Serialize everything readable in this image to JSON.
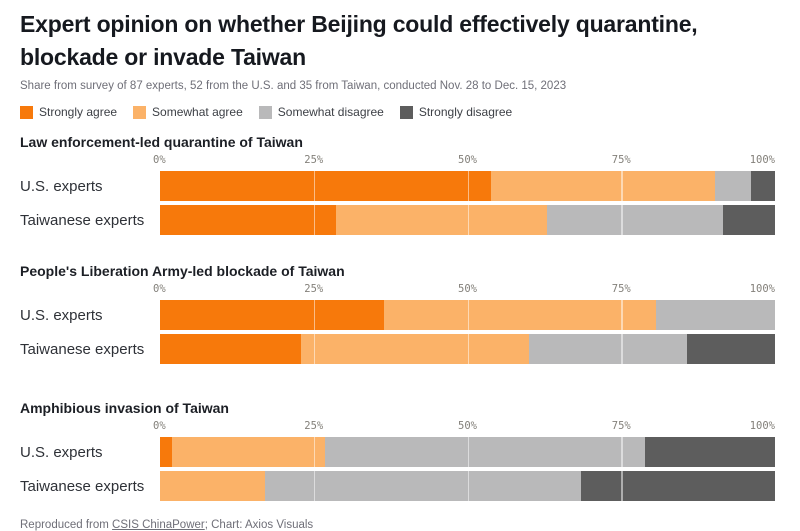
{
  "title": "Expert opinion on whether Beijing could effectively quarantine, blockade or invade Taiwan",
  "subtitle": "Share from survey of 87 experts, 52 from the U.S. and 35 from Taiwan, conducted Nov. 28 to Dec. 15, 2023",
  "legend": [
    {
      "label": "Strongly agree",
      "color": "#f7790b"
    },
    {
      "label": "Somewhat agree",
      "color": "#fbb268"
    },
    {
      "label": "Somewhat disagree",
      "color": "#b9b9ba"
    },
    {
      "label": "Strongly disagree",
      "color": "#5d5d5d"
    }
  ],
  "footer": {
    "prefix": "Reproduced from ",
    "link": "CSIS ChinaPower",
    "suffix": "; Chart: Axios Visuals"
  },
  "chart_data": [
    {
      "type": "bar",
      "stacked": true,
      "orientation": "horizontal",
      "title": "Law enforcement-led quarantine of Taiwan",
      "categories": [
        "U.S. experts",
        "Taiwanese experts"
      ],
      "series": [
        {
          "name": "Strongly agree",
          "values": [
            53.8,
            28.6
          ]
        },
        {
          "name": "Somewhat agree",
          "values": [
            36.5,
            34.3
          ]
        },
        {
          "name": "Somewhat disagree",
          "values": [
            5.8,
            28.6
          ]
        },
        {
          "name": "Strongly disagree",
          "values": [
            3.9,
            8.5
          ]
        }
      ],
      "x_ticks": [
        "0%",
        "25%",
        "50%",
        "75%",
        "100%"
      ],
      "xlim": [
        0,
        100
      ],
      "gridlines_pct": [
        25,
        50,
        75
      ]
    },
    {
      "type": "bar",
      "stacked": true,
      "orientation": "horizontal",
      "title": "People's Liberation Army-led blockade of Taiwan",
      "categories": [
        "U.S. experts",
        "Taiwanese experts"
      ],
      "series": [
        {
          "name": "Strongly agree",
          "values": [
            36.5,
            22.9
          ]
        },
        {
          "name": "Somewhat agree",
          "values": [
            44.2,
            37.1
          ]
        },
        {
          "name": "Somewhat disagree",
          "values": [
            19.3,
            25.7
          ]
        },
        {
          "name": "Strongly disagree",
          "values": [
            0,
            14.3
          ]
        }
      ],
      "x_ticks": [
        "0%",
        "25%",
        "50%",
        "75%",
        "100%"
      ],
      "xlim": [
        0,
        100
      ],
      "gridlines_pct": [
        25,
        50,
        75
      ]
    },
    {
      "type": "bar",
      "stacked": true,
      "orientation": "horizontal",
      "title": "Amphibious invasion of Taiwan",
      "categories": [
        "U.S. experts",
        "Taiwanese experts"
      ],
      "series": [
        {
          "name": "Strongly agree",
          "values": [
            1.9,
            0
          ]
        },
        {
          "name": "Somewhat agree",
          "values": [
            25.0,
            17.1
          ]
        },
        {
          "name": "Somewhat disagree",
          "values": [
            51.9,
            51.4
          ]
        },
        {
          "name": "Strongly disagree",
          "values": [
            21.2,
            31.5
          ]
        }
      ],
      "x_ticks": [
        "0%",
        "25%",
        "50%",
        "75%",
        "100%"
      ],
      "xlim": [
        0,
        100
      ],
      "gridlines_pct": [
        25,
        50,
        75
      ]
    }
  ]
}
